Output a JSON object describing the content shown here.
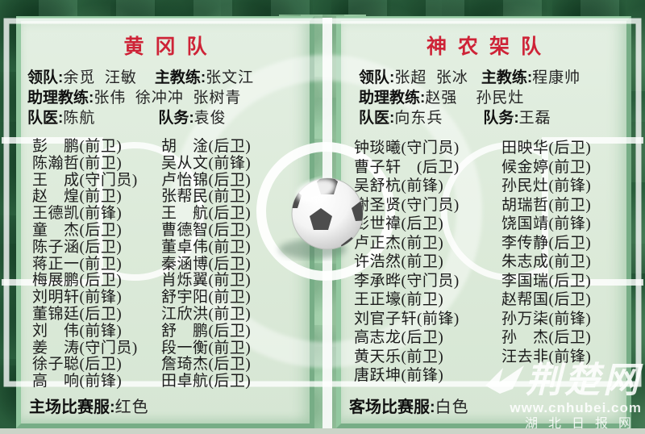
{
  "colors": {
    "grass_dark": "#2f6a44",
    "grass_mid": "#8fc49a",
    "panel_bg": "#dcead9",
    "panel_border": "#93c8a0",
    "title_red": "#ce2337",
    "line_white": "#ffffff"
  },
  "teams": [
    {
      "name": "黄冈队",
      "staff": [
        {
          "l1": "领队:",
          "v1": "余觅  汪敏",
          "l2": "主教练:",
          "v2": "张文江"
        },
        {
          "l1": "助理教练:",
          "v1": "张伟  徐冲冲  张树青",
          "l2": "",
          "v2": ""
        },
        {
          "l1": "队医:",
          "v1": "陈航",
          "l2": "队务:",
          "v2": "袁俊"
        }
      ],
      "players_col1": [
        "彭　鹏(前卫)",
        "陈瀚哲(前卫)",
        "王　成(守门员)",
        "赵　煌(前卫)",
        "王德凯(前锋)",
        "童　杰(后卫)",
        "陈子涵(后卫)",
        "蒋正一(前卫)",
        "梅展鹏(后卫)",
        "刘明轩(前锋)",
        "董锦廷(后卫)",
        "刘　伟(前锋)",
        "姜　涛(守门员)",
        "徐子聪(后卫)",
        "高　响(前锋)"
      ],
      "players_col2": [
        "胡　淦(后卫)",
        "吴从文(前锋)",
        "卢怡锦(后卫)",
        "张帮民(前卫)",
        "王　航(后卫)",
        "曹德智(后卫)",
        "董卓伟(前卫)",
        "秦涵博(后卫)",
        "肖烁翼(前卫)",
        "舒宇阳(前卫)",
        "江欣洪(前卫)",
        "舒　鹏(后卫)",
        "段一衡(前卫)",
        "詹琦杰(后卫)",
        "田卓航(后卫)"
      ],
      "kit_label": "主场比赛服:",
      "kit_value": "红色"
    },
    {
      "name": "神农架队",
      "staff": [
        {
          "l1": "领队:",
          "v1": "张超  张冰",
          "l2": "主教练:",
          "v2": "程康帅"
        },
        {
          "l1": "助理教练:",
          "v1": "赵强    孙民灶",
          "l2": "",
          "v2": ""
        },
        {
          "l1": "队医:",
          "v1": "向东兵",
          "l2": "队务:",
          "v2": "王磊"
        }
      ],
      "players_col1": [
        "钟琰曦(守门员)",
        "曹子轩　(后卫)",
        "吴舒杭(前锋)",
        "谢圣贤(守门员)",
        "彭世禕(后卫)",
        "卢正杰(前卫)",
        "许浩然(前卫)",
        "李承晔(守门员)",
        "王正壕(前卫)",
        "刘官子轩(前锋)",
        "高志龙(后卫)",
        "黄天乐(前卫)",
        "唐跃坤(前锋)"
      ],
      "players_col2": [
        "田映华(后卫)",
        "候金婷(前卫)",
        "孙民灶(前锋)",
        "胡瑞哲(前卫)",
        "饶国靖(前锋)",
        "李传静(后卫)",
        "朱志成(前卫)",
        "李国瑞(后卫)",
        "赵帮国(后卫)",
        "孙万柒(前锋)",
        "孙　杰(后卫)",
        "汪去非(前锋)"
      ],
      "kit_label": "客场比赛服:",
      "kit_value": "白色"
    }
  ],
  "watermark": {
    "title": "荆楚网",
    "url": "www.cnhubei.com",
    "subtitle": "湖北日报网"
  }
}
